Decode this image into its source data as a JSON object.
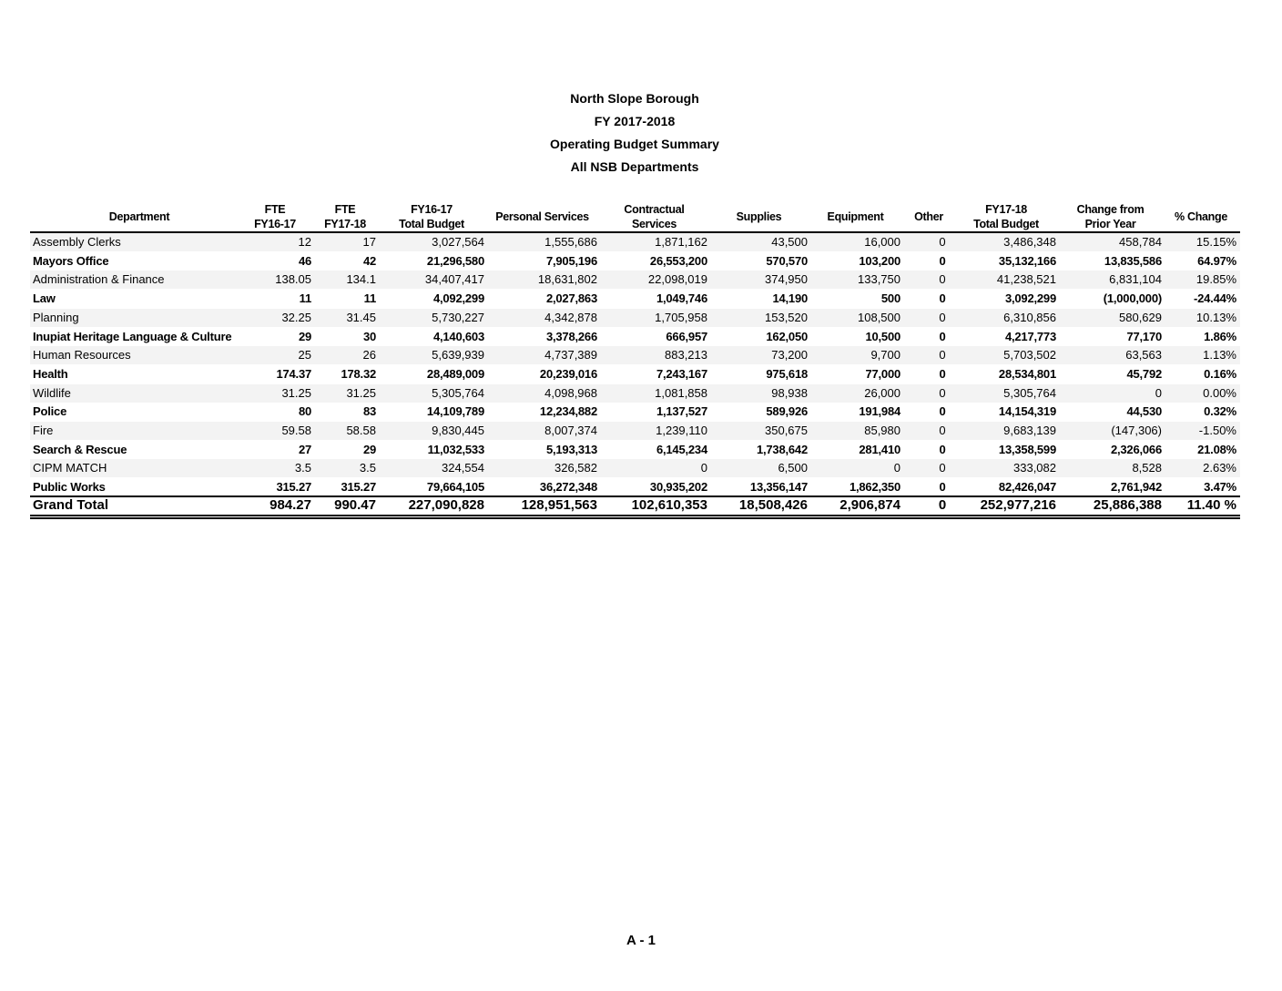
{
  "header": {
    "title": [
      "North Slope Borough",
      "FY 2017-2018",
      "Operating Budget Summary",
      "All NSB Departments"
    ]
  },
  "table": {
    "columns": [
      [
        "Department"
      ],
      [
        "FTE",
        "FY16-17"
      ],
      [
        "FTE",
        "FY17-18"
      ],
      [
        "FY16-17",
        "Total Budget"
      ],
      [
        "Personal Services"
      ],
      [
        "Contractual",
        "Services"
      ],
      [
        "Supplies"
      ],
      [
        "Equipment"
      ],
      [
        "Other"
      ],
      [
        "FY17-18",
        "Total Budget"
      ],
      [
        "Change from",
        "Prior Year"
      ],
      [
        "% Change"
      ]
    ],
    "rows": [
      [
        "Assembly Clerks",
        "12",
        "17",
        "3,027,564",
        "1,555,686",
        "1,871,162",
        "43,500",
        "16,000",
        "0",
        "3,486,348",
        "458,784",
        "15.15%"
      ],
      [
        "Mayors Office",
        "46",
        "42",
        "21,296,580",
        "7,905,196",
        "26,553,200",
        "570,570",
        "103,200",
        "0",
        "35,132,166",
        "13,835,586",
        "64.97%"
      ],
      [
        "Administration & Finance",
        "138.05",
        "134.1",
        "34,407,417",
        "18,631,802",
        "22,098,019",
        "374,950",
        "133,750",
        "0",
        "41,238,521",
        "6,831,104",
        "19.85%"
      ],
      [
        "Law",
        "11",
        "11",
        "4,092,299",
        "2,027,863",
        "1,049,746",
        "14,190",
        "500",
        "0",
        "3,092,299",
        "(1,000,000)",
        "-24.44%"
      ],
      [
        "Planning",
        "32.25",
        "31.45",
        "5,730,227",
        "4,342,878",
        "1,705,958",
        "153,520",
        "108,500",
        "0",
        "6,310,856",
        "580,629",
        "10.13%"
      ],
      [
        "Inupiat Heritage Language & Culture",
        "29",
        "30",
        "4,140,603",
        "3,378,266",
        "666,957",
        "162,050",
        "10,500",
        "0",
        "4,217,773",
        "77,170",
        "1.86%"
      ],
      [
        "Human Resources",
        "25",
        "26",
        "5,639,939",
        "4,737,389",
        "883,213",
        "73,200",
        "9,700",
        "0",
        "5,703,502",
        "63,563",
        "1.13%"
      ],
      [
        "Health",
        "174.37",
        "178.32",
        "28,489,009",
        "20,239,016",
        "7,243,167",
        "975,618",
        "77,000",
        "0",
        "28,534,801",
        "45,792",
        "0.16%"
      ],
      [
        "Wildlife",
        "31.25",
        "31.25",
        "5,305,764",
        "4,098,968",
        "1,081,858",
        "98,938",
        "26,000",
        "0",
        "5,305,764",
        "0",
        "0.00%"
      ],
      [
        "Police",
        "80",
        "83",
        "14,109,789",
        "12,234,882",
        "1,137,527",
        "589,926",
        "191,984",
        "0",
        "14,154,319",
        "44,530",
        "0.32%"
      ],
      [
        "Fire",
        "59.58",
        "58.58",
        "9,830,445",
        "8,007,374",
        "1,239,110",
        "350,675",
        "85,980",
        "0",
        "9,683,139",
        "(147,306)",
        "-1.50%"
      ],
      [
        "Search & Rescue",
        "27",
        "29",
        "11,032,533",
        "5,193,313",
        "6,145,234",
        "1,738,642",
        "281,410",
        "0",
        "13,358,599",
        "2,326,066",
        "21.08%"
      ],
      [
        "CIPM MATCH",
        "3.5",
        "3.5",
        "324,554",
        "326,582",
        "0",
        "6,500",
        "0",
        "0",
        "333,082",
        "8,528",
        "2.63%"
      ],
      [
        "Public Works",
        "315.27",
        "315.27",
        "79,664,105",
        "36,272,348",
        "30,935,202",
        "13,356,147",
        "1,862,350",
        "0",
        "82,426,047",
        "2,761,942",
        "3.47%"
      ]
    ],
    "total": [
      "Grand Total",
      "984.27",
      "990.47",
      "227,090,828",
      "128,951,563",
      "102,610,353",
      "18,508,426",
      "2,906,874",
      "0",
      "252,977,216",
      "25,886,388",
      "11.40 %"
    ]
  },
  "footer": {
    "page": "A - 1"
  }
}
